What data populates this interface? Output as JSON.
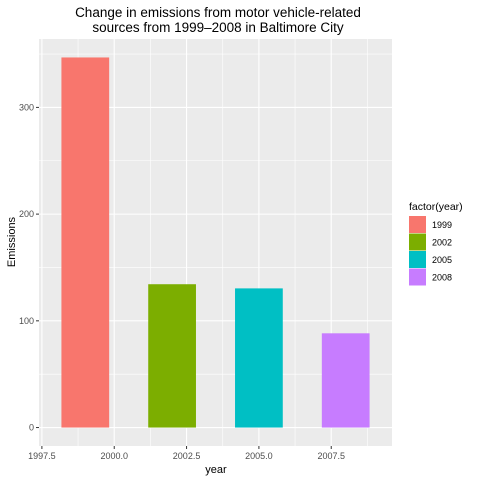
{
  "chart_data": {
    "type": "bar",
    "title": [
      "Change in emissions from motor vehicle-related",
      "sources from 1999–2008 in Baltimore City"
    ],
    "xlabel": "year",
    "ylabel": "Emissions",
    "x": [
      1999,
      2002,
      2005,
      2008
    ],
    "values": [
      346.8,
      134.3,
      130.4,
      88.3
    ],
    "xlim": [
      1997.4,
      2009.6
    ],
    "ylim": [
      -17.3,
      364.1
    ],
    "xticks": [
      1997.5,
      2000.0,
      2002.5,
      2005.0,
      2007.5
    ],
    "xtick_labels": [
      "1997.5",
      "2000.0",
      "2002.5",
      "2005.0",
      "2007.5"
    ],
    "yticks": [
      0,
      100,
      200,
      300
    ],
    "ytick_labels": [
      "0",
      "100",
      "200",
      "300"
    ],
    "bar_width_years": 1.65,
    "grid": true,
    "legend": {
      "title": "factor(year)",
      "placement": "right",
      "entries": [
        "1999",
        "2002",
        "2005",
        "2008"
      ]
    },
    "colors": [
      "#F8766D",
      "#7CAE00",
      "#00BFC4",
      "#C77CFF"
    ],
    "panel_background": "#EBEBEB",
    "grid_color": "#FFFFFF"
  }
}
